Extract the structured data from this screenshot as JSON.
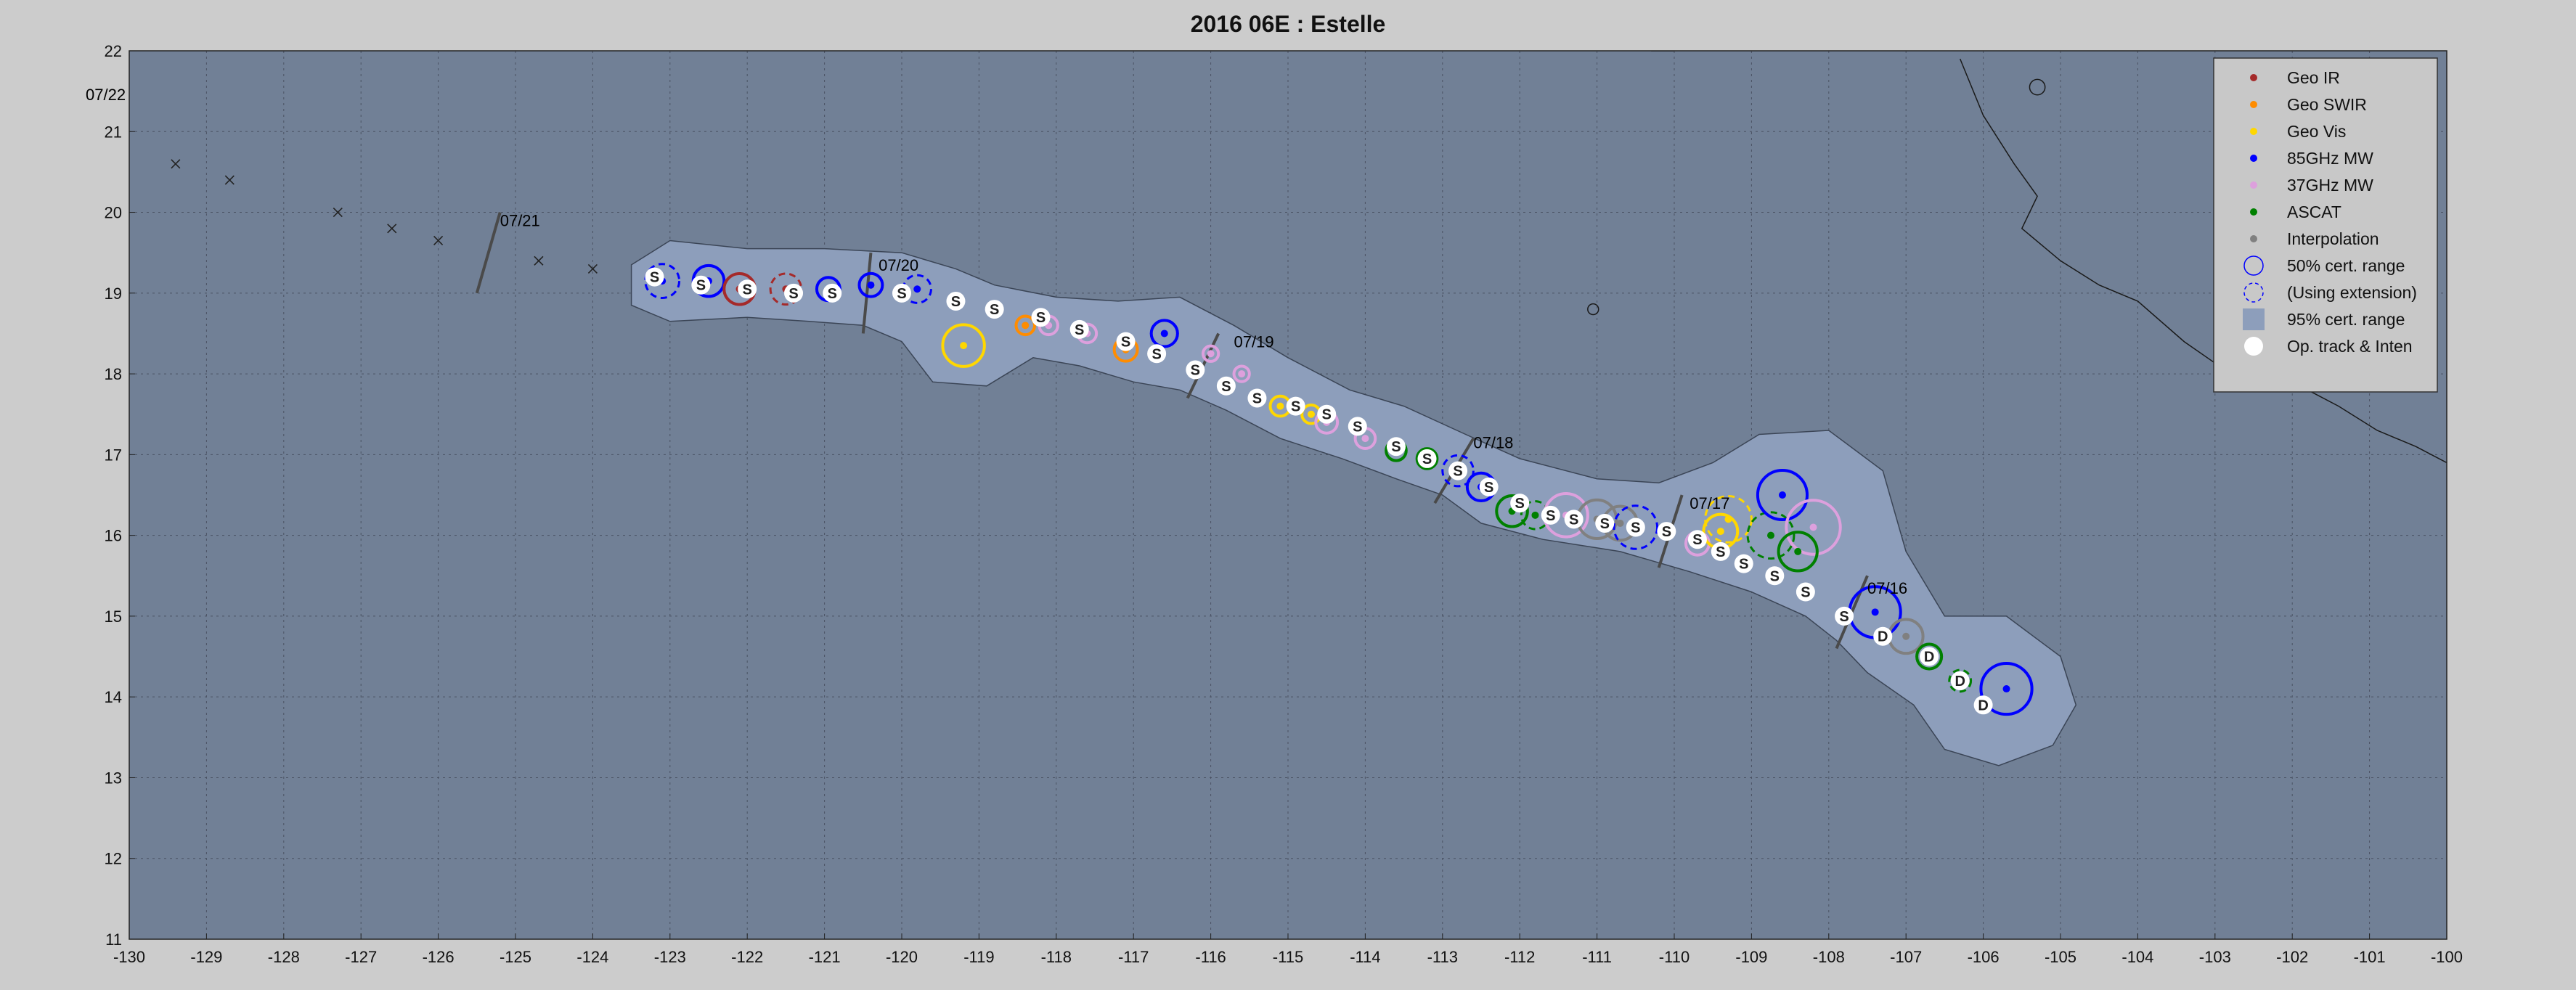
{
  "title": "2016  06E :  Estelle",
  "map": {
    "xlim": [
      -130,
      -100
    ],
    "ylim": [
      11,
      22
    ],
    "xticks": [
      "-130",
      "-129",
      "-128",
      "-127",
      "-126",
      "-125",
      "-124",
      "-123",
      "-122",
      "-121",
      "-120",
      "-119",
      "-118",
      "-117",
      "-116",
      "-115",
      "-114",
      "-113",
      "-112",
      "-111",
      "-110",
      "-109",
      "-108",
      "-107",
      "-106",
      "-105",
      "-104",
      "-103",
      "-102",
      "-101",
      "-100"
    ],
    "yticks": [
      "11",
      "12",
      "13",
      "14",
      "15",
      "16",
      "17",
      "18",
      "19",
      "20",
      "21",
      "22"
    ],
    "grid": true,
    "colors": {
      "ocean": "#718096",
      "cone": "#8d9ebb",
      "geo_ir": "#a52a2a",
      "geo_swir": "#ff8c00",
      "geo_vis": "#ffd700",
      "mw85": "#0000ff",
      "mw37": "#dda0dd",
      "ascat": "#008000",
      "interp": "#808080"
    }
  },
  "legend": {
    "position": "top-right",
    "items": [
      {
        "label": "Geo IR",
        "symbol": "dot",
        "color": "#a52a2a"
      },
      {
        "label": "Geo SWIR",
        "symbol": "dot",
        "color": "#ff8c00"
      },
      {
        "label": "Geo Vis",
        "symbol": "dot",
        "color": "#ffd700"
      },
      {
        "label": "85GHz MW",
        "symbol": "dot",
        "color": "#0000ff"
      },
      {
        "label": "37GHz MW",
        "symbol": "dot",
        "color": "#dda0dd"
      },
      {
        "label": "ASCAT",
        "symbol": "dot",
        "color": "#008000"
      },
      {
        "label": "Interpolation",
        "symbol": "dot",
        "color": "#808080"
      },
      {
        "label": "50% cert. range",
        "symbol": "circle",
        "color": "#0000ff"
      },
      {
        "label": "(Using extension)",
        "symbol": "dashed-circle",
        "color": "#0000ff"
      },
      {
        "label": "95% cert. range",
        "symbol": "square",
        "color": "#8d9ebb"
      },
      {
        "label": "Op. track & Inten",
        "symbol": "white-dot",
        "color": "#ffffff"
      }
    ]
  },
  "day_labels": [
    {
      "text": "07/22",
      "lon": -130.5,
      "lat": 21.4
    },
    {
      "text": "07/21",
      "lon": -125.2,
      "lat": 19.9,
      "bar": [
        -125.5,
        19.0,
        -125.2,
        20.0
      ]
    },
    {
      "text": "07/20",
      "lon": -120.3,
      "lat": 19.35,
      "bar": [
        -120.5,
        18.5,
        -120.4,
        19.5
      ]
    },
    {
      "text": "07/19",
      "lon": -115.7,
      "lat": 18.4,
      "bar": [
        -116.3,
        17.7,
        -115.9,
        18.5
      ]
    },
    {
      "text": "07/18",
      "lon": -112.6,
      "lat": 17.15,
      "bar": [
        -113.1,
        16.4,
        -112.6,
        17.2
      ]
    },
    {
      "text": "07/17",
      "lon": -109.8,
      "lat": 16.4,
      "bar": [
        -110.2,
        15.6,
        -109.9,
        16.5
      ]
    },
    {
      "text": "07/16",
      "lon": -107.5,
      "lat": 15.35,
      "bar": [
        -107.9,
        14.6,
        -107.5,
        15.5
      ]
    }
  ],
  "forecast_track": [
    {
      "lon": -129.4,
      "lat": 20.6
    },
    {
      "lon": -128.7,
      "lat": 20.4
    },
    {
      "lon": -127.3,
      "lat": 20.0
    },
    {
      "lon": -126.6,
      "lat": 19.8
    },
    {
      "lon": -126.0,
      "lat": 19.65
    },
    {
      "lon": -124.7,
      "lat": 19.4
    },
    {
      "lon": -124.0,
      "lat": 19.3
    }
  ],
  "cone_path": [
    [
      -123.5,
      19.35
    ],
    [
      -123.0,
      19.65
    ],
    [
      -122.0,
      19.55
    ],
    [
      -121.0,
      19.55
    ],
    [
      -120.0,
      19.5
    ],
    [
      -119.3,
      19.3
    ],
    [
      -118.8,
      19.1
    ],
    [
      -118.0,
      18.95
    ],
    [
      -117.2,
      18.9
    ],
    [
      -116.4,
      18.95
    ],
    [
      -115.7,
      18.6
    ],
    [
      -115.0,
      18.2
    ],
    [
      -114.2,
      17.8
    ],
    [
      -113.5,
      17.6
    ],
    [
      -112.7,
      17.25
    ],
    [
      -112.0,
      16.95
    ],
    [
      -111.0,
      16.7
    ],
    [
      -110.2,
      16.65
    ],
    [
      -109.5,
      16.9
    ],
    [
      -108.9,
      17.25
    ],
    [
      -108.0,
      17.3
    ],
    [
      -107.3,
      16.8
    ],
    [
      -107.0,
      15.8
    ],
    [
      -106.5,
      15.0
    ],
    [
      -105.7,
      15.0
    ],
    [
      -105.0,
      14.5
    ],
    [
      -104.8,
      13.9
    ],
    [
      -105.1,
      13.4
    ],
    [
      -105.8,
      13.15
    ],
    [
      -106.5,
      13.35
    ],
    [
      -106.9,
      13.9
    ],
    [
      -107.5,
      14.3
    ],
    [
      -107.9,
      14.7
    ],
    [
      -108.3,
      15.0
    ],
    [
      -109.0,
      15.3
    ],
    [
      -109.8,
      15.55
    ],
    [
      -110.7,
      15.8
    ],
    [
      -111.7,
      15.95
    ],
    [
      -112.5,
      16.15
    ],
    [
      -113.0,
      16.5
    ],
    [
      -113.6,
      16.7
    ],
    [
      -114.3,
      16.95
    ],
    [
      -115.1,
      17.2
    ],
    [
      -115.8,
      17.55
    ],
    [
      -116.4,
      17.8
    ],
    [
      -117.0,
      17.9
    ],
    [
      -117.7,
      18.1
    ],
    [
      -118.3,
      18.2
    ],
    [
      -118.9,
      17.85
    ],
    [
      -119.6,
      17.9
    ],
    [
      -120.0,
      18.4
    ],
    [
      -120.5,
      18.6
    ],
    [
      -121.2,
      18.65
    ],
    [
      -122.0,
      18.7
    ],
    [
      -123.0,
      18.65
    ],
    [
      -123.5,
      18.85
    ]
  ],
  "op_track": [
    {
      "lon": -123.2,
      "lat": 19.2,
      "label": "S"
    },
    {
      "lon": -122.6,
      "lat": 19.1,
      "label": "S"
    },
    {
      "lon": -122.0,
      "lat": 19.05,
      "label": "S"
    },
    {
      "lon": -121.4,
      "lat": 19.0,
      "label": "S"
    },
    {
      "lon": -120.9,
      "lat": 19.0,
      "label": "S"
    },
    {
      "lon": -120.0,
      "lat": 19.0,
      "label": "S"
    },
    {
      "lon": -119.3,
      "lat": 18.9,
      "label": "S"
    },
    {
      "lon": -118.8,
      "lat": 18.8,
      "label": "S"
    },
    {
      "lon": -118.2,
      "lat": 18.7,
      "label": "S"
    },
    {
      "lon": -117.7,
      "lat": 18.55,
      "label": "S"
    },
    {
      "lon": -117.1,
      "lat": 18.4,
      "label": "S"
    },
    {
      "lon": -116.7,
      "lat": 18.25,
      "label": "S"
    },
    {
      "lon": -116.2,
      "lat": 18.05,
      "label": "S"
    },
    {
      "lon": -115.8,
      "lat": 17.85,
      "label": "S"
    },
    {
      "lon": -115.4,
      "lat": 17.7,
      "label": "S"
    },
    {
      "lon": -114.9,
      "lat": 17.6,
      "label": "S"
    },
    {
      "lon": -114.5,
      "lat": 17.5,
      "label": "S"
    },
    {
      "lon": -114.1,
      "lat": 17.35,
      "label": "S"
    },
    {
      "lon": -113.6,
      "lat": 17.1,
      "label": "S"
    },
    {
      "lon": -113.2,
      "lat": 16.95,
      "label": "S"
    },
    {
      "lon": -112.8,
      "lat": 16.8,
      "label": "S"
    },
    {
      "lon": -112.4,
      "lat": 16.6,
      "label": "S"
    },
    {
      "lon": -112.0,
      "lat": 16.4,
      "label": "S"
    },
    {
      "lon": -111.6,
      "lat": 16.25,
      "label": "S"
    },
    {
      "lon": -111.3,
      "lat": 16.2,
      "label": "S"
    },
    {
      "lon": -110.9,
      "lat": 16.15,
      "label": "S"
    },
    {
      "lon": -110.5,
      "lat": 16.1,
      "label": "S"
    },
    {
      "lon": -110.1,
      "lat": 16.05,
      "label": "S"
    },
    {
      "lon": -109.7,
      "lat": 15.95,
      "label": "S"
    },
    {
      "lon": -109.4,
      "lat": 15.8,
      "label": "S"
    },
    {
      "lon": -109.1,
      "lat": 15.65,
      "label": "S"
    },
    {
      "lon": -108.7,
      "lat": 15.5,
      "label": "S"
    },
    {
      "lon": -108.3,
      "lat": 15.3,
      "label": "S"
    },
    {
      "lon": -107.8,
      "lat": 15.0,
      "label": "S"
    },
    {
      "lon": -107.3,
      "lat": 14.75,
      "label": "D"
    },
    {
      "lon": -106.7,
      "lat": 14.5,
      "label": "D"
    },
    {
      "lon": -106.3,
      "lat": 14.2,
      "label": "D"
    },
    {
      "lon": -106.0,
      "lat": 13.9,
      "label": "D"
    }
  ],
  "fixes": [
    {
      "lon": -123.1,
      "lat": 19.15,
      "type": "mw85",
      "r": 0.22,
      "dashed": true
    },
    {
      "lon": -122.5,
      "lat": 19.15,
      "type": "mw85",
      "r": 0.2,
      "dashed": false
    },
    {
      "lon": -122.1,
      "lat": 19.05,
      "type": "geo_ir",
      "r": 0.2,
      "dashed": false
    },
    {
      "lon": -121.5,
      "lat": 19.05,
      "type": "geo_ir",
      "r": 0.2,
      "dashed": true
    },
    {
      "lon": -120.95,
      "lat": 19.05,
      "type": "mw85",
      "r": 0.15,
      "dashed": false
    },
    {
      "lon": -120.4,
      "lat": 19.1,
      "type": "mw85",
      "r": 0.15,
      "dashed": false
    },
    {
      "lon": -119.8,
      "lat": 19.05,
      "type": "mw85",
      "r": 0.18,
      "dashed": true
    },
    {
      "lon": -119.2,
      "lat": 18.35,
      "type": "geo_vis",
      "r": 0.27,
      "dashed": false
    },
    {
      "lon": -118.4,
      "lat": 18.6,
      "type": "geo_swir",
      "r": 0.12,
      "dashed": false
    },
    {
      "lon": -118.1,
      "lat": 18.6,
      "type": "mw37",
      "r": 0.12,
      "dashed": false
    },
    {
      "lon": -117.6,
      "lat": 18.5,
      "type": "mw37",
      "r": 0.12,
      "dashed": false
    },
    {
      "lon": -117.1,
      "lat": 18.3,
      "type": "geo_swir",
      "r": 0.15,
      "dashed": false
    },
    {
      "lon": -116.6,
      "lat": 18.5,
      "type": "mw85",
      "r": 0.17,
      "dashed": false
    },
    {
      "lon": -116.0,
      "lat": 18.25,
      "type": "mw37",
      "r": 0.1,
      "dashed": false
    },
    {
      "lon": -115.6,
      "lat": 18.0,
      "type": "mw37",
      "r": 0.1,
      "dashed": false
    },
    {
      "lon": -115.1,
      "lat": 17.6,
      "type": "geo_vis",
      "r": 0.13,
      "dashed": false
    },
    {
      "lon": -114.7,
      "lat": 17.5,
      "type": "geo_vis",
      "r": 0.12,
      "dashed": false
    },
    {
      "lon": -114.5,
      "lat": 17.4,
      "type": "mw37",
      "r": 0.14,
      "dashed": false
    },
    {
      "lon": -114.0,
      "lat": 17.2,
      "type": "mw37",
      "r": 0.13,
      "dashed": false
    },
    {
      "lon": -113.6,
      "lat": 17.05,
      "type": "ascat",
      "r": 0.13,
      "dashed": false
    },
    {
      "lon": -113.2,
      "lat": 16.95,
      "type": "ascat",
      "r": 0.13,
      "dashed": false
    },
    {
      "lon": -112.8,
      "lat": 16.8,
      "type": "mw85",
      "r": 0.2,
      "dashed": true
    },
    {
      "lon": -112.5,
      "lat": 16.6,
      "type": "mw85",
      "r": 0.18,
      "dashed": false
    },
    {
      "lon": -112.1,
      "lat": 16.3,
      "type": "ascat",
      "r": 0.2,
      "dashed": false
    },
    {
      "lon": -111.8,
      "lat": 16.25,
      "type": "ascat",
      "r": 0.18,
      "dashed": true
    },
    {
      "lon": -111.4,
      "lat": 16.25,
      "type": "mw37",
      "r": 0.28,
      "dashed": false
    },
    {
      "lon": -111.0,
      "lat": 16.2,
      "type": "interp",
      "r": 0.25,
      "dashed": false
    },
    {
      "lon": -110.7,
      "lat": 16.15,
      "type": "interp",
      "r": 0.22,
      "dashed": false
    },
    {
      "lon": -110.5,
      "lat": 16.1,
      "type": "mw85",
      "r": 0.28,
      "dashed": true
    },
    {
      "lon": -109.7,
      "lat": 15.9,
      "type": "mw37",
      "r": 0.15,
      "dashed": false
    },
    {
      "lon": -109.4,
      "lat": 16.05,
      "type": "geo_vis",
      "r": 0.22,
      "dashed": false
    },
    {
      "lon": -109.3,
      "lat": 16.2,
      "type": "geo_vis",
      "r": 0.3,
      "dashed": true
    },
    {
      "lon": -108.75,
      "lat": 16.0,
      "type": "ascat",
      "r": 0.3,
      "dashed": true
    },
    {
      "lon": -108.6,
      "lat": 16.5,
      "type": "mw85",
      "r": 0.32,
      "dashed": false
    },
    {
      "lon": -108.2,
      "lat": 16.1,
      "type": "mw37",
      "r": 0.35,
      "dashed": false
    },
    {
      "lon": -108.4,
      "lat": 15.8,
      "type": "ascat",
      "r": 0.25,
      "dashed": false
    },
    {
      "lon": -107.4,
      "lat": 15.05,
      "type": "mw85",
      "r": 0.33,
      "dashed": false
    },
    {
      "lon": -107.0,
      "lat": 14.75,
      "type": "interp",
      "r": 0.22,
      "dashed": false
    },
    {
      "lon": -106.7,
      "lat": 14.5,
      "type": "ascat",
      "r": 0.16,
      "dashed": false
    },
    {
      "lon": -106.3,
      "lat": 14.2,
      "type": "ascat",
      "r": 0.14,
      "dashed": true
    },
    {
      "lon": -105.7,
      "lat": 14.1,
      "type": "mw85",
      "r": 0.33,
      "dashed": false
    }
  ],
  "coast": [
    [
      [
        -106.3,
        21.9
      ],
      [
        -106.0,
        21.2
      ],
      [
        -105.6,
        20.6
      ],
      [
        -105.3,
        20.2
      ],
      [
        -105.5,
        19.8
      ],
      [
        -105.0,
        19.4
      ],
      [
        -104.5,
        19.1
      ],
      [
        -104.0,
        18.9
      ],
      [
        -103.4,
        18.4
      ],
      [
        -102.8,
        18.0
      ],
      [
        -102.0,
        17.9
      ],
      [
        -101.4,
        17.6
      ],
      [
        -100.9,
        17.3
      ],
      [
        -100.4,
        17.1
      ],
      [
        -100.0,
        16.9
      ]
    ],
    [
      [
        -110.3,
        22.0
      ],
      [
        -110.0,
        22.0
      ]
    ]
  ],
  "islands": [
    {
      "lon": -111.05,
      "lat": 18.8,
      "r": 0.07
    },
    {
      "lon": -105.3,
      "lat": 21.55,
      "r": 0.1
    }
  ]
}
